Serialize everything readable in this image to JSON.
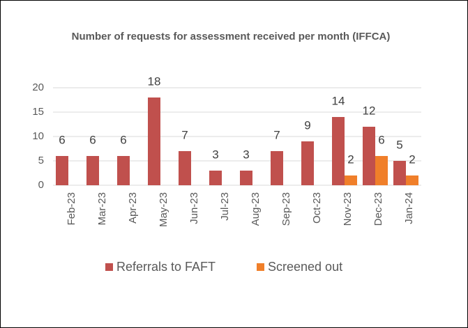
{
  "chart_data": {
    "type": "bar",
    "title": "Number of requests for assessment received per month (IFFCA)",
    "categories": [
      "Feb-23",
      "Mar-23",
      "Apr-23",
      "May-23",
      "Jun-23",
      "Jul-23",
      "Aug-23",
      "Sep-23",
      "Oct-23",
      "Nov-23",
      "Dec-23",
      "Jan-24"
    ],
    "series": [
      {
        "name": "Referrals to FAFT",
        "color": "#c0504d",
        "values": [
          6,
          6,
          6,
          18,
          7,
          3,
          3,
          7,
          9,
          14,
          12,
          5
        ]
      },
      {
        "name": "Screened out",
        "color": "#f07f2a",
        "values": [
          null,
          null,
          null,
          null,
          null,
          null,
          null,
          null,
          null,
          2,
          6,
          2
        ]
      }
    ],
    "ylim": [
      0,
      20
    ],
    "yticks": [
      0,
      5,
      10,
      15,
      20
    ],
    "grid": true,
    "legend": "bottom"
  }
}
